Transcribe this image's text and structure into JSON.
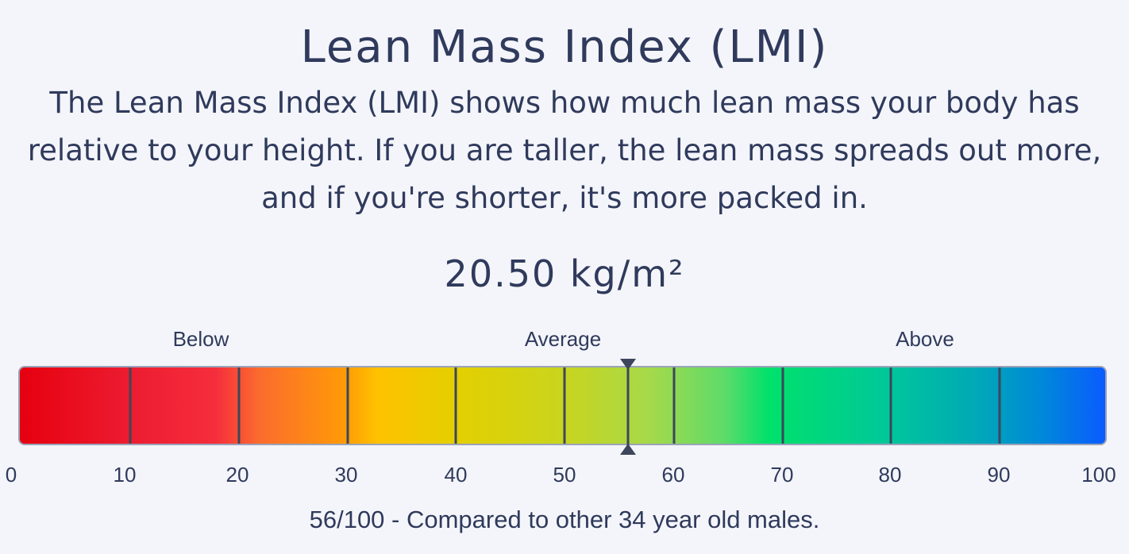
{
  "title": "Lean Mass Index (LMI)",
  "description": "The Lean Mass Index (LMI) shows how much lean mass your body has relative to your height. If you are taller, the lean mass spreads out more, and if you're shorter, it's more packed in.",
  "value_display": "20.50 kg/m²",
  "zones": {
    "below": "Below",
    "average": "Average",
    "above": "Above"
  },
  "scale": {
    "min": 0,
    "max": 100,
    "ticks": [
      "0",
      "10",
      "20",
      "30",
      "40",
      "50",
      "60",
      "70",
      "80",
      "90",
      "100"
    ],
    "percentile": 56
  },
  "colors": {
    "low": "#e6000f",
    "mid": "#c9d51d",
    "high": "#0a5cff",
    "marker": "#3d465c"
  },
  "footer": "56/100 - Compared to other 34 year old males."
}
